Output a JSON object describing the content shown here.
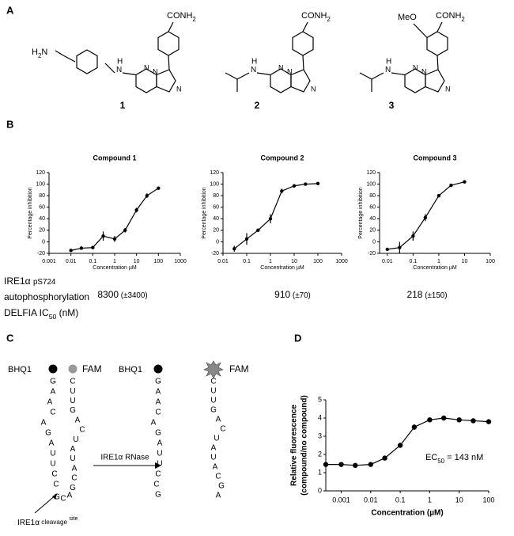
{
  "panel_labels": [
    "A",
    "B",
    "C",
    "D"
  ],
  "structures": [
    {
      "amide": [
        "CONH",
        "2"
      ],
      "amine": [
        "H",
        "2",
        "N"
      ],
      "nh": [
        "N",
        "H"
      ],
      "ring_atoms": [
        "N",
        "N",
        "N"
      ],
      "number": "1"
    },
    {
      "amide": [
        "CONH",
        "2"
      ],
      "nh": [
        "N",
        "H"
      ],
      "ring_atoms": [
        "N",
        "N",
        "N"
      ],
      "number": "2"
    },
    {
      "amide": [
        "CONH",
        "2"
      ],
      "methoxy": "MeO",
      "nh": [
        "N",
        "H"
      ],
      "ring_atoms": [
        "N",
        "N",
        "N"
      ],
      "number": "3"
    }
  ],
  "ic50_table": {
    "row_label": [
      [
        "IRE1α ",
        "pS724"
      ],
      [
        "autophosphorylation"
      ],
      [
        "DELFIA IC",
        "50",
        " (nM)"
      ]
    ],
    "values": [
      [
        "8300",
        " (±3400)"
      ],
      [
        "910",
        " (±70)"
      ],
      [
        "218",
        " (±150)"
      ]
    ]
  },
  "rna_diagram": {
    "quencher": "BHQ1",
    "fluorophore": "FAM",
    "enzyme": "IRE1α RNase",
    "cleavage_label": [
      "IRE1α",
      " cleavage ",
      "site"
    ],
    "left_strand": [
      "G",
      "A",
      "A",
      "C",
      "A",
      "G",
      "A",
      "U",
      "U",
      "C",
      "C"
    ],
    "loop": [
      "G",
      "C",
      "A"
    ],
    "right_strand": [
      "C",
      "U",
      "U",
      "G",
      "A",
      "C",
      "U",
      "A",
      "U",
      "A",
      "C",
      "G"
    ],
    "product_left": [
      "G",
      "A",
      "A",
      "C",
      "A",
      "G",
      "A",
      "U",
      "U",
      "C",
      "C",
      "G"
    ],
    "product_right": [
      "C",
      "U",
      "U",
      "G",
      "A",
      "C",
      "U",
      "A",
      "U",
      "A",
      "C",
      "G",
      "A"
    ]
  },
  "chart_data": [
    {
      "type": "line",
      "title": "Compound 1",
      "xlabel": "Concentration µM",
      "ylabel": "Percentage inhibition",
      "log_x": true,
      "color": "#000000",
      "x": [
        0.01,
        0.03,
        0.1,
        0.3,
        1,
        3,
        10,
        30,
        100
      ],
      "values": [
        -15,
        -11,
        -10,
        10,
        5,
        20,
        55,
        80,
        93
      ],
      "errors": [
        0,
        3,
        3,
        8,
        5,
        4,
        4,
        4,
        2
      ],
      "xlim": [
        0.001,
        1000
      ],
      "xticks": [
        0.001,
        0.01,
        0.1,
        1,
        10,
        100,
        1000
      ],
      "ylim": [
        -20,
        120
      ],
      "yticks": [
        -20,
        0,
        20,
        40,
        60,
        80,
        100,
        120
      ]
    },
    {
      "type": "line",
      "title": "Compound 2",
      "xlabel": "Concentration µM",
      "ylabel": "Percentage inhibition",
      "log_x": true,
      "color": "#000000",
      "x": [
        0.03,
        0.1,
        0.3,
        1,
        3,
        10,
        30,
        100
      ],
      "values": [
        -12,
        5,
        20,
        40,
        88,
        97,
        100,
        101
      ],
      "errors": [
        5,
        10,
        3,
        8,
        4,
        2,
        2,
        2
      ],
      "xlim": [
        0.01,
        1000
      ],
      "xticks": [
        0.01,
        0.1,
        1,
        10,
        100,
        1000
      ],
      "ylim": [
        -20,
        120
      ],
      "yticks": [
        -20,
        0,
        20,
        40,
        60,
        80,
        100,
        120
      ]
    },
    {
      "type": "line",
      "title": "Compound 3",
      "xlabel": "Concentration µM",
      "ylabel": "Percentage inhibition",
      "log_x": true,
      "color": "#000000",
      "x": [
        0.01,
        0.03,
        0.1,
        0.3,
        1,
        3,
        10
      ],
      "values": [
        -13,
        -10,
        10,
        42,
        80,
        98,
        104
      ],
      "errors": [
        2,
        10,
        8,
        6,
        3,
        2,
        2
      ],
      "xlim": [
        0.005,
        100
      ],
      "xticks": [
        0.01,
        0.1,
        1,
        10,
        100
      ],
      "ylim": [
        -20,
        120
      ],
      "yticks": [
        -20,
        0,
        20,
        40,
        60,
        80,
        100,
        120
      ]
    },
    {
      "type": "line",
      "xlabel": "Concentration (µM)",
      "ylabel": [
        "Relative fluorescence",
        "(compound/no compound)"
      ],
      "annotation": [
        "EC",
        "50",
        " = 143 nM"
      ],
      "log_x": true,
      "color": "#000000",
      "x": [
        0.0003,
        0.001,
        0.003,
        0.01,
        0.03,
        0.1,
        0.3,
        1,
        3,
        10,
        30,
        100
      ],
      "values": [
        1.45,
        1.45,
        1.4,
        1.45,
        1.8,
        2.5,
        3.5,
        3.9,
        4.0,
        3.9,
        3.85,
        3.8
      ],
      "errors": [
        0,
        0,
        0,
        0,
        0.08,
        0.05,
        0.15,
        0.05,
        0.05,
        0.05,
        0.05,
        0.05
      ],
      "xlim": [
        0.0003,
        100
      ],
      "xticks": [
        0.001,
        0.01,
        0.1,
        1,
        10,
        100
      ],
      "ylim": [
        0,
        5
      ],
      "yticks": [
        0,
        1,
        2,
        3,
        4,
        5
      ]
    }
  ]
}
